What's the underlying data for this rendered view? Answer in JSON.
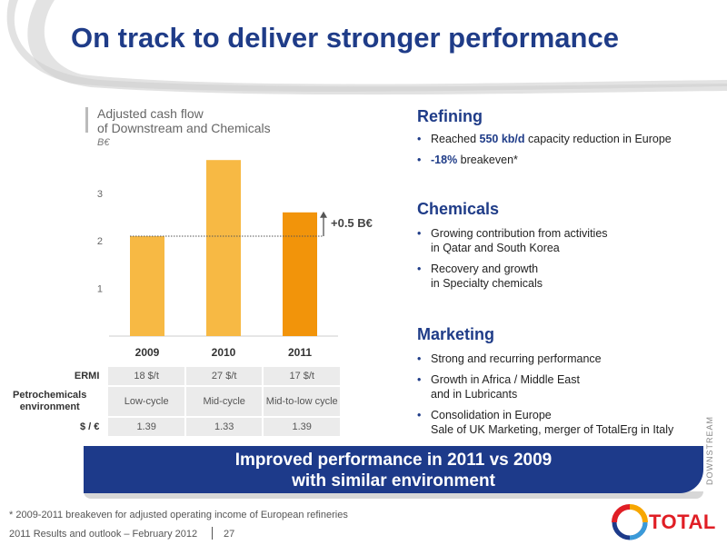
{
  "title": "On track to deliver stronger performance",
  "chart_data": {
    "type": "bar",
    "title": "Adjusted cash flow of Downstream and Chemicals",
    "title_lines": [
      "Adjusted cash flow",
      "of Downstream and Chemicals"
    ],
    "unit": "B€",
    "categories": [
      "2009",
      "2010",
      "2011"
    ],
    "values": [
      2.1,
      3.7,
      2.6
    ],
    "yticks": [
      "1",
      "2",
      "3"
    ],
    "ylim": [
      0,
      4.2
    ],
    "colors": [
      "#f7b944",
      "#f7b944",
      "#f2940a"
    ],
    "annotation": "+0.5 B€",
    "grid": false
  },
  "env_table": {
    "rows": [
      {
        "label": "ERMI",
        "values": [
          "18 $/t",
          "27 $/t",
          "17 $/t"
        ]
      },
      {
        "label": "Petrochemicals environment",
        "values": [
          "Low-cycle",
          "Mid-cycle",
          "Mid-to-low cycle"
        ]
      },
      {
        "label": "$ / €",
        "values": [
          "1.39",
          "1.33",
          "1.39"
        ]
      }
    ]
  },
  "sections": {
    "refining": {
      "heading": "Refining",
      "b1_pre": "Reached ",
      "b1_hl": "550 kb/d",
      "b1_post": " capacity reduction in Europe",
      "b2_hl": "-18%",
      "b2_post": " breakeven*"
    },
    "chemicals": {
      "heading": "Chemicals",
      "b1_l1": "Growing contribution from activities",
      "b1_l2": "in Qatar and South Korea",
      "b2_l1": "Recovery and growth",
      "b2_l2": "in Specialty chemicals"
    },
    "marketing": {
      "heading": "Marketing",
      "b1": "Strong and recurring performance",
      "b2_l1": "Growth in Africa / Middle East",
      "b2_l2": "and in Lubricants",
      "b3_l1": "Consolidation in Europe",
      "b3_l2": "Sale of UK Marketing, merger of TotalErg in Italy"
    }
  },
  "banner": {
    "line1": "Improved performance in 2011 vs 2009",
    "line2": "with similar environment"
  },
  "side_label": "DOWNSTREAM",
  "footnote": "* 2009-2011 breakeven for adjusted operating income of European refineries",
  "footer": {
    "text": "2011 Results and outlook – February 2012",
    "page": "27"
  },
  "logo": {
    "text": "TOTAL",
    "colors": [
      "#e01e25",
      "#f7a600",
      "#1d3a8a",
      "#3a9ad9"
    ]
  }
}
